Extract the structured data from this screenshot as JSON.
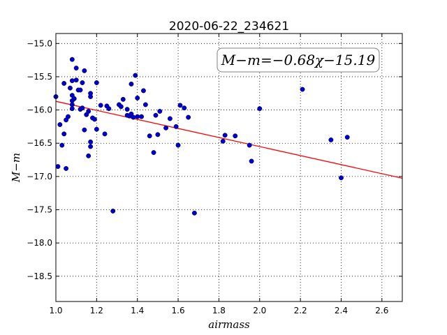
{
  "chart_data": {
    "type": "scatter",
    "title": "2020-06-22_234621",
    "xlabel": "airmass",
    "ylabel": "M−m",
    "xlim": [
      1.0,
      2.7
    ],
    "ylim": [
      -18.88,
      -14.85
    ],
    "x_ticks": [
      1.0,
      1.2,
      1.4,
      1.6,
      1.8,
      2.0,
      2.2,
      2.4,
      2.6
    ],
    "y_ticks": [
      -15.0,
      -15.5,
      -16.0,
      -16.5,
      -17.0,
      -17.5,
      -18.0,
      -18.5
    ],
    "x_tick_labels": [
      "1.0",
      "1.2",
      "1.4",
      "1.6",
      "1.8",
      "2.0",
      "2.2",
      "2.4",
      "2.6"
    ],
    "y_tick_labels": [
      "−15.0",
      "−15.5",
      "−16.0",
      "−16.5",
      "−17.0",
      "−17.5",
      "−18.0",
      "−18.5"
    ],
    "grid": true,
    "annotation": "M−m=−0.68χ−15.19",
    "fit_line": {
      "slope": -0.68,
      "intercept": -15.19,
      "color": "#ff0000"
    },
    "point_color": "#0000cc",
    "points": [
      [
        1.0,
        -15.8
      ],
      [
        1.01,
        -16.85
      ],
      [
        1.02,
        -16.22
      ],
      [
        1.03,
        -16.53
      ],
      [
        1.04,
        -15.6
      ],
      [
        1.04,
        -16.36
      ],
      [
        1.05,
        -16.88
      ],
      [
        1.05,
        -16.15
      ],
      [
        1.06,
        -16.1
      ],
      [
        1.07,
        -15.67
      ],
      [
        1.08,
        -15.24
      ],
      [
        1.08,
        -15.56
      ],
      [
        1.08,
        -15.78
      ],
      [
        1.08,
        -15.86
      ],
      [
        1.08,
        -15.92
      ],
      [
        1.08,
        -15.98
      ],
      [
        1.09,
        -15.83
      ],
      [
        1.1,
        -15.55
      ],
      [
        1.1,
        -15.37
      ],
      [
        1.11,
        -15.7
      ],
      [
        1.12,
        -15.7
      ],
      [
        1.12,
        -15.99
      ],
      [
        1.13,
        -15.97
      ],
      [
        1.13,
        -15.59
      ],
      [
        1.14,
        -15.41
      ],
      [
        1.14,
        -16.3
      ],
      [
        1.15,
        -16.07
      ],
      [
        1.16,
        -16.02
      ],
      [
        1.16,
        -16.69
      ],
      [
        1.17,
        -16.48
      ],
      [
        1.17,
        -16.55
      ],
      [
        1.17,
        -15.75
      ],
      [
        1.17,
        -15.8
      ],
      [
        1.18,
        -16.12
      ],
      [
        1.19,
        -16.14
      ],
      [
        1.2,
        -15.59
      ],
      [
        1.2,
        -16.29
      ],
      [
        1.22,
        -15.93
      ],
      [
        1.24,
        -16.36
      ],
      [
        1.25,
        -15.94
      ],
      [
        1.26,
        -15.98
      ],
      [
        1.28,
        -17.52
      ],
      [
        1.31,
        -15.92
      ],
      [
        1.32,
        -15.95
      ],
      [
        1.33,
        -15.84
      ],
      [
        1.35,
        -16.08
      ],
      [
        1.35,
        -15.99
      ],
      [
        1.36,
        -16.09
      ],
      [
        1.37,
        -15.61
      ],
      [
        1.37,
        -16.06
      ],
      [
        1.38,
        -16.11
      ],
      [
        1.39,
        -15.48
      ],
      [
        1.4,
        -16.1
      ],
      [
        1.4,
        -15.82
      ],
      [
        1.42,
        -16.1
      ],
      [
        1.43,
        -15.71
      ],
      [
        1.44,
        -15.92
      ],
      [
        1.46,
        -16.39
      ],
      [
        1.48,
        -16.64
      ],
      [
        1.49,
        -16.08
      ],
      [
        1.5,
        -16.37
      ],
      [
        1.51,
        -16.02
      ],
      [
        1.54,
        -16.27
      ],
      [
        1.56,
        -16.13
      ],
      [
        1.59,
        -16.25
      ],
      [
        1.6,
        -16.53
      ],
      [
        1.61,
        -15.93
      ],
      [
        1.63,
        -15.97
      ],
      [
        1.65,
        -16.11
      ],
      [
        1.68,
        -17.55
      ],
      [
        1.82,
        -16.47
      ],
      [
        1.83,
        -16.38
      ],
      [
        1.88,
        -16.39
      ],
      [
        1.95,
        -16.53
      ],
      [
        1.96,
        -16.77
      ],
      [
        2.0,
        -15.98
      ],
      [
        2.21,
        -15.69
      ],
      [
        2.35,
        -16.45
      ],
      [
        2.4,
        -17.02
      ],
      [
        2.43,
        -16.41
      ]
    ]
  }
}
